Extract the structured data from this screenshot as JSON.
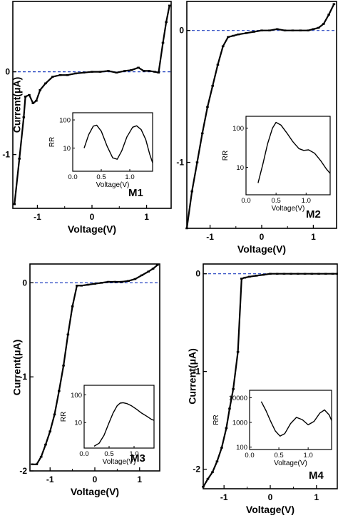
{
  "chart_data": [
    {
      "type": "line",
      "panel_label": "M1",
      "xlabel": "Voltage(V)",
      "ylabel": "Current(μA)",
      "xlim": [
        -1.45,
        1.45
      ],
      "ylim": [
        -1.65,
        0.85
      ],
      "xticks": [
        -1,
        0,
        1
      ],
      "yticks": [
        0,
        -1
      ],
      "xtick_labels": [
        "-1",
        "0",
        "1"
      ],
      "ytick_labels": [
        "0",
        "-1"
      ],
      "reference_line": {
        "y": 0,
        "color": "#1f3fbf",
        "style": "dashed"
      },
      "series": [
        {
          "x": [
            -1.42,
            -1.33,
            -1.25,
            -1.22,
            -1.15,
            -1.08,
            -1.02,
            -0.95,
            -0.85,
            -0.72,
            -0.58,
            -0.45,
            -0.3,
            -0.15,
            0.0,
            0.15,
            0.3,
            0.45,
            0.6,
            0.72,
            0.85,
            0.95,
            1.05,
            1.15,
            1.22,
            1.3,
            1.36,
            1.42
          ],
          "y": [
            -1.6,
            -1.05,
            -0.55,
            -0.3,
            -0.28,
            -0.38,
            -0.35,
            -0.22,
            -0.14,
            -0.06,
            -0.04,
            -0.04,
            -0.02,
            -0.01,
            0.0,
            0.0,
            0.01,
            -0.01,
            0.01,
            0.02,
            0.05,
            0.01,
            0.01,
            0.0,
            -0.01,
            0.35,
            0.6,
            0.8
          ]
        }
      ],
      "inset": {
        "xlabel": "Voltage(V)",
        "ylabel": "RR",
        "xlim": [
          0.0,
          1.4
        ],
        "yscale": "log",
        "ylim": [
          1.5,
          180
        ],
        "xticks": [
          0.0,
          0.5,
          1.0
        ],
        "xtick_labels": [
          "0.0",
          "0.5",
          "1.0"
        ],
        "yticks": [
          10,
          100
        ],
        "ytick_labels": [
          "10",
          "100"
        ],
        "x": [
          0.2,
          0.28,
          0.36,
          0.42,
          0.5,
          0.6,
          0.7,
          0.78,
          0.86,
          0.95,
          1.05,
          1.12,
          1.2,
          1.28,
          1.35,
          1.4
        ],
        "y": [
          10,
          30,
          60,
          65,
          40,
          12,
          4.5,
          4,
          8,
          25,
          55,
          62,
          45,
          20,
          6,
          3
        ]
      }
    },
    {
      "type": "line",
      "panel_label": "M2",
      "xlabel": "Voltage(V)",
      "ylabel": "",
      "xlim": [
        -1.45,
        1.45
      ],
      "ylim": [
        -1.5,
        0.22
      ],
      "xticks": [
        -1,
        0,
        1
      ],
      "yticks": [
        0,
        -1
      ],
      "xtick_labels": [
        "-1",
        "0",
        "1"
      ],
      "ytick_labels": [
        "0",
        "-1"
      ],
      "reference_line": {
        "y": 0,
        "color": "#1f3fbf",
        "style": "dashed"
      },
      "series": [
        {
          "x": [
            -1.45,
            -1.35,
            -1.25,
            -1.15,
            -1.05,
            -0.95,
            -0.85,
            -0.75,
            -0.65,
            -0.55,
            -0.45,
            -0.3,
            -0.15,
            0.0,
            0.15,
            0.3,
            0.45,
            0.6,
            0.75,
            0.9,
            1.0,
            1.1,
            1.2,
            1.3,
            1.4
          ],
          "y": [
            -1.5,
            -1.22,
            -1.0,
            -0.78,
            -0.58,
            -0.42,
            -0.26,
            -0.12,
            -0.05,
            -0.04,
            -0.03,
            -0.02,
            -0.01,
            0.0,
            0.0,
            0.01,
            0.0,
            0.0,
            0.0,
            0.0,
            0.01,
            0.02,
            0.05,
            0.12,
            0.2
          ]
        }
      ],
      "inset": {
        "xlabel": "Voltage(V)",
        "ylabel": "RR",
        "xlim": [
          0.0,
          1.4
        ],
        "yscale": "log",
        "ylim": [
          2,
          200
        ],
        "xticks": [
          0.0,
          0.5,
          1.0
        ],
        "xtick_labels": [
          "0.0",
          "0.5",
          "1.0"
        ],
        "yticks": [
          10,
          100
        ],
        "ytick_labels": [
          "10",
          "100"
        ],
        "x": [
          0.2,
          0.28,
          0.36,
          0.44,
          0.5,
          0.58,
          0.68,
          0.78,
          0.88,
          0.96,
          1.04,
          1.14,
          1.24,
          1.34,
          1.4
        ],
        "y": [
          4,
          12,
          40,
          100,
          140,
          120,
          75,
          45,
          30,
          27,
          28,
          23,
          15,
          9,
          7
        ]
      }
    },
    {
      "type": "line",
      "panel_label": "M3",
      "xlabel": "Voltage(V)",
      "ylabel": "Current(μA)",
      "xlim": [
        -1.45,
        1.45
      ],
      "ylim": [
        -2.0,
        0.2
      ],
      "xticks": [
        -1,
        0,
        1
      ],
      "yticks": [
        0,
        -1,
        -2
      ],
      "xtick_labels": [
        "-1",
        "0",
        "1"
      ],
      "ytick_labels": [
        "0",
        "-1",
        "-2"
      ],
      "reference_line": {
        "y": 0,
        "color": "#1f3fbf",
        "style": "dashed"
      },
      "series": [
        {
          "x": [
            -1.4,
            -1.3,
            -1.2,
            -1.1,
            -1.0,
            -0.9,
            -0.8,
            -0.7,
            -0.6,
            -0.5,
            -0.4,
            -0.3,
            -0.15,
            0.0,
            0.15,
            0.3,
            0.45,
            0.6,
            0.75,
            0.9,
            1.05,
            1.2,
            1.3,
            1.4
          ],
          "y": [
            -1.93,
            -1.93,
            -1.85,
            -1.72,
            -1.58,
            -1.4,
            -1.15,
            -0.88,
            -0.55,
            -0.25,
            -0.03,
            -0.03,
            -0.02,
            -0.01,
            0.0,
            0.01,
            0.01,
            0.01,
            0.02,
            0.04,
            0.08,
            0.12,
            0.15,
            0.19
          ]
        }
      ],
      "inset": {
        "xlabel": "Voltage(V)",
        "ylabel": "RR",
        "xlim": [
          0.0,
          1.4
        ],
        "yscale": "log",
        "ylim": [
          1.2,
          220
        ],
        "xticks": [
          0.0,
          0.5,
          1.0
        ],
        "xtick_labels": [
          "0.0",
          "0.5",
          "1.0"
        ],
        "yticks": [
          10,
          100
        ],
        "ytick_labels": [
          "10",
          "100"
        ],
        "x": [
          0.2,
          0.3,
          0.4,
          0.5,
          0.58,
          0.66,
          0.72,
          0.78,
          0.86,
          0.95,
          1.05,
          1.15,
          1.25,
          1.35,
          1.4
        ],
        "y": [
          1.4,
          1.8,
          3.5,
          10,
          22,
          40,
          50,
          52,
          48,
          40,
          30,
          22,
          17,
          13,
          12
        ]
      }
    },
    {
      "type": "line",
      "panel_label": "M4",
      "xlabel": "Voltage(V)",
      "ylabel": "Current(μA)",
      "xlim": [
        -1.45,
        1.45
      ],
      "ylim": [
        -2.2,
        0.1
      ],
      "xticks": [
        -1,
        0,
        1
      ],
      "yticks": [
        0,
        -1,
        -2
      ],
      "xtick_labels": [
        "-1",
        "0",
        "1"
      ],
      "ytick_labels": [
        "0",
        "-1",
        "-2"
      ],
      "reference_line": {
        "y": 0,
        "color": "#1f3fbf",
        "style": "dashed"
      },
      "series": [
        {
          "x": [
            -1.45,
            -1.35,
            -1.25,
            -1.15,
            -1.05,
            -0.95,
            -0.88,
            -0.8,
            -0.7,
            -0.62,
            -0.55,
            -0.45,
            -0.3,
            -0.15,
            0.0,
            0.15,
            0.3,
            0.45,
            0.6,
            0.75,
            0.9,
            1.05,
            1.2,
            1.35,
            1.45
          ],
          "y": [
            -2.18,
            -2.1,
            -2.03,
            -1.92,
            -1.78,
            -1.58,
            -1.38,
            -1.18,
            -0.8,
            -0.05,
            -0.04,
            -0.03,
            -0.02,
            -0.01,
            0.0,
            0.0,
            0.0,
            0.0,
            0.0,
            0.0,
            0.0,
            0.0,
            0.0,
            0.0,
            0.0
          ]
        }
      ],
      "inset": {
        "xlabel": "Voltage(V)",
        "ylabel": "RR",
        "xlim": [
          0.0,
          1.4
        ],
        "yscale": "log",
        "ylim": [
          80,
          20000
        ],
        "xticks": [
          0.0,
          0.5,
          1.0
        ],
        "xtick_labels": [
          "0.0",
          "0.5",
          "1.0"
        ],
        "yticks": [
          100,
          1000,
          10000
        ],
        "ytick_labels": [
          "100",
          "1000",
          "10000"
        ],
        "x": [
          0.2,
          0.28,
          0.36,
          0.44,
          0.52,
          0.6,
          0.7,
          0.8,
          0.9,
          1.0,
          1.1,
          1.2,
          1.28,
          1.36,
          1.4
        ],
        "y": [
          7000,
          3000,
          1100,
          450,
          280,
          350,
          900,
          1600,
          1300,
          800,
          1100,
          2400,
          3200,
          2000,
          1200
        ]
      }
    }
  ]
}
